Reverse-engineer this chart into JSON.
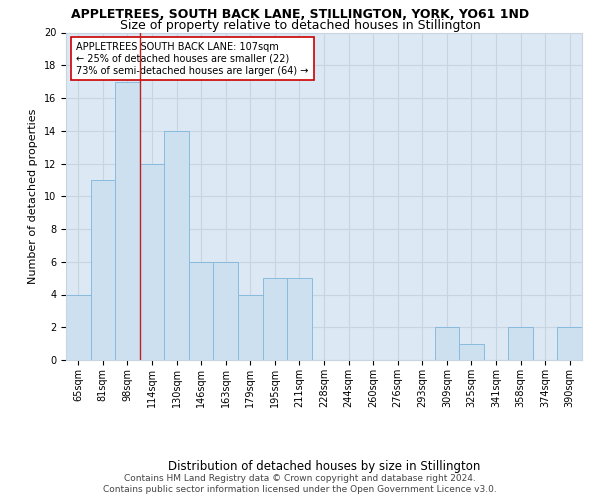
{
  "title": "APPLETREES, SOUTH BACK LANE, STILLINGTON, YORK, YO61 1ND",
  "subtitle": "Size of property relative to detached houses in Stillington",
  "xlabel": "Distribution of detached houses by size in Stillington",
  "ylabel": "Number of detached properties",
  "categories": [
    "65sqm",
    "81sqm",
    "98sqm",
    "114sqm",
    "130sqm",
    "146sqm",
    "163sqm",
    "179sqm",
    "195sqm",
    "211sqm",
    "228sqm",
    "244sqm",
    "260sqm",
    "276sqm",
    "293sqm",
    "309sqm",
    "325sqm",
    "341sqm",
    "358sqm",
    "374sqm",
    "390sqm"
  ],
  "values": [
    4,
    11,
    17,
    12,
    14,
    6,
    6,
    4,
    5,
    5,
    0,
    0,
    0,
    0,
    0,
    2,
    1,
    0,
    2,
    0,
    2
  ],
  "bar_color": "#cce0f0",
  "bar_edge_color": "#88bbdd",
  "grid_color": "#c8d4e0",
  "plot_bg_color": "#dce8f4",
  "fig_bg_color": "#ffffff",
  "red_line_x": 2.5,
  "annotation_text": "APPLETREES SOUTH BACK LANE: 107sqm\n← 25% of detached houses are smaller (22)\n73% of semi-detached houses are larger (64) →",
  "annotation_box_color": "#ffffff",
  "annotation_border_color": "#cc0000",
  "ylim": [
    0,
    20
  ],
  "yticks": [
    0,
    2,
    4,
    6,
    8,
    10,
    12,
    14,
    16,
    18,
    20
  ],
  "footer_line1": "Contains HM Land Registry data © Crown copyright and database right 2024.",
  "footer_line2": "Contains public sector information licensed under the Open Government Licence v3.0.",
  "title_fontsize": 9,
  "subtitle_fontsize": 9,
  "tick_fontsize": 7,
  "ylabel_fontsize": 8,
  "xlabel_fontsize": 8.5,
  "annotation_fontsize": 7,
  "footer_fontsize": 6.5
}
